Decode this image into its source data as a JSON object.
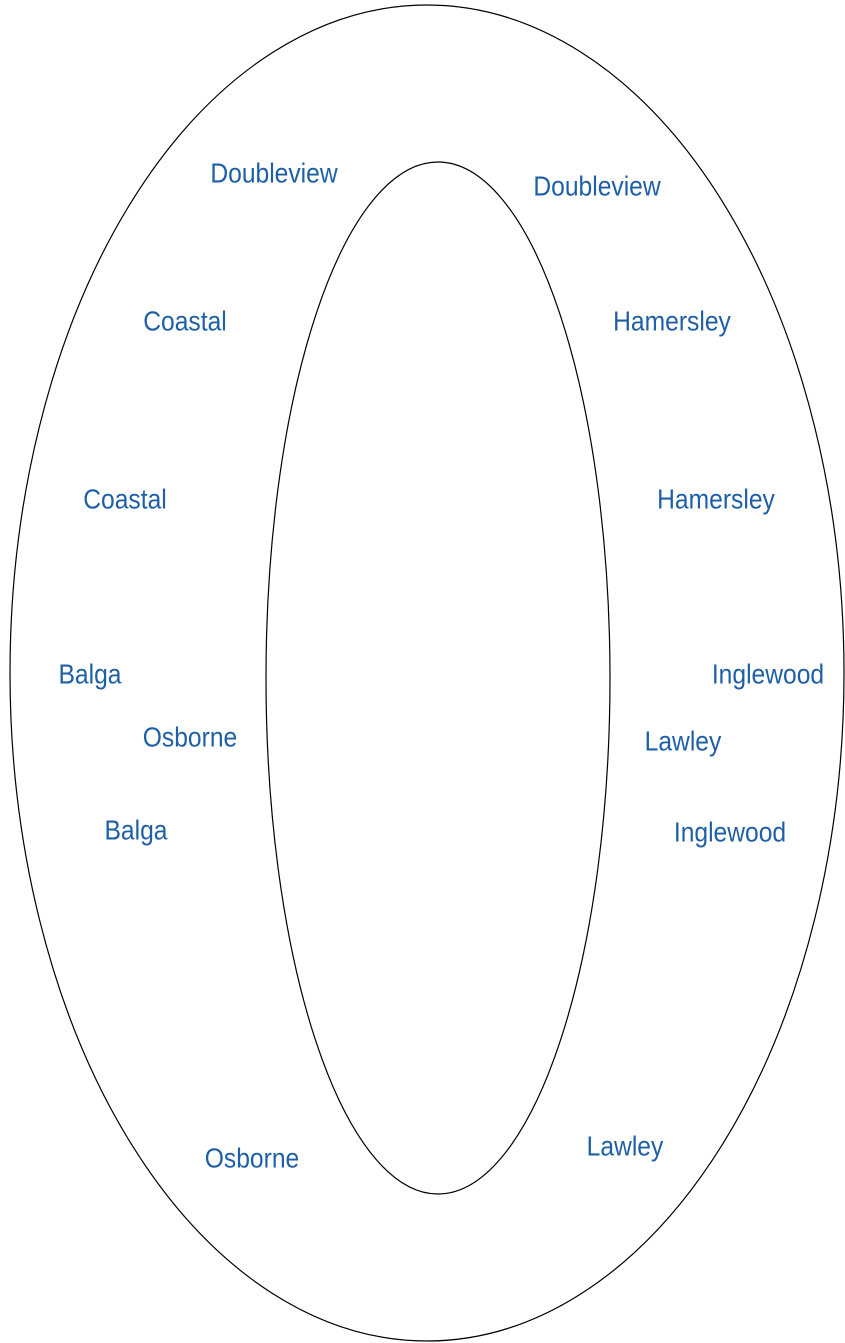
{
  "labels": [
    "Doubleview",
    "Doubleview",
    "Coastal",
    "Hamersley",
    "Coastal",
    "Hamersley",
    "Balga",
    "Inglewood",
    "Balga",
    "Inglewood",
    "Osborne",
    "Lawley",
    "Osborne",
    "Lawley"
  ]
}
